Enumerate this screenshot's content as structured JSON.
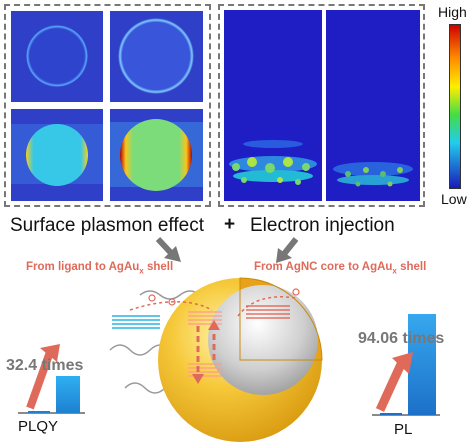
{
  "colorbar": {
    "high": "High",
    "low": "Low"
  },
  "headline": {
    "left": "Surface plasmon effect",
    "plus": "+",
    "right": "Electron injection"
  },
  "annotations": {
    "ligand": "From ligand to AgAu",
    "ligand_sub": "x",
    "ligand_tail": " shell",
    "core": "From AgNC core to AgAu",
    "core_sub": "x",
    "core_tail": " shell"
  },
  "left_metric": {
    "value": "32.4 times",
    "axis": "PLQY"
  },
  "right_metric": {
    "value": "94.06 times",
    "axis": "PL"
  },
  "colors": {
    "sim_bg": "#2f3fc8",
    "accent_red": "#e06a5a",
    "bar_blue": "#2aa0e8",
    "shell_gold": "#f2b927"
  }
}
